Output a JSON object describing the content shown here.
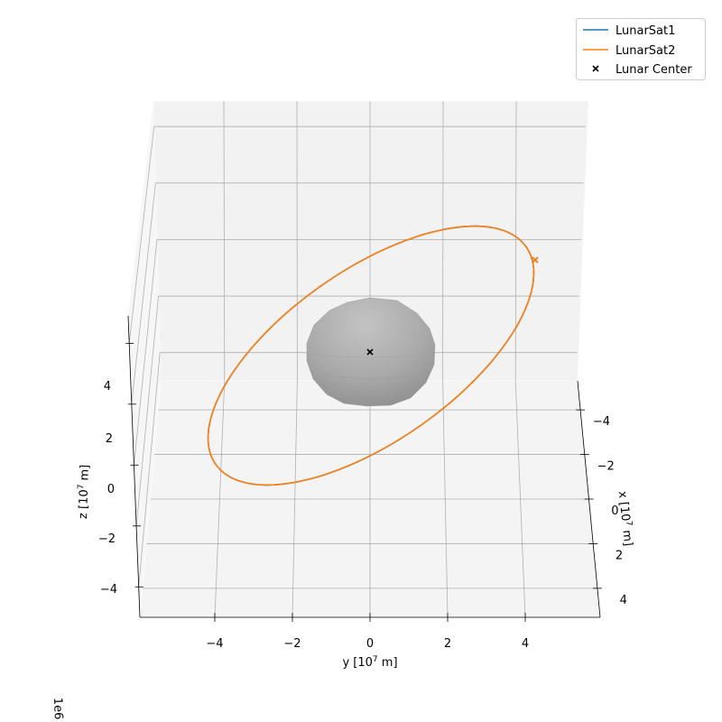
{
  "chart_data": {
    "type": "line",
    "projection": "3d",
    "units_note": "1e6",
    "xlabel_prefix": "x [10",
    "ylabel_prefix": "y [10",
    "zlabel_prefix": "z [10",
    "label_exponent": "7",
    "label_suffix": " m]",
    "x_ticks": [
      -4,
      -2,
      0,
      2,
      4
    ],
    "y_ticks": [
      -4,
      -2,
      0,
      2,
      4
    ],
    "z_ticks": [
      -4,
      -2,
      0,
      2,
      4
    ],
    "x_tick_labels": [
      "−4",
      "−2",
      "0",
      "2",
      "4"
    ],
    "y_tick_labels": [
      "−4",
      "−2",
      "0",
      "2",
      "4"
    ],
    "z_tick_labels": [
      "−4",
      "−2",
      "0",
      "2",
      "4"
    ],
    "grid": true,
    "legend_position": "top-right",
    "legend": [
      "LunarSat1",
      "LunarSat2",
      "Lunar Center"
    ],
    "series": [
      {
        "name": "LunarSat1",
        "color": "#1f77b4",
        "kind": "orbit",
        "note": "overlapped by LunarSat2"
      },
      {
        "name": "LunarSat2",
        "color": "#ff7f0e",
        "kind": "orbit"
      },
      {
        "name": "Lunar Center",
        "color": "#000000",
        "kind": "marker",
        "x": 0,
        "y": 0,
        "z": 0
      }
    ],
    "moon_color": "#a8a8a8"
  }
}
